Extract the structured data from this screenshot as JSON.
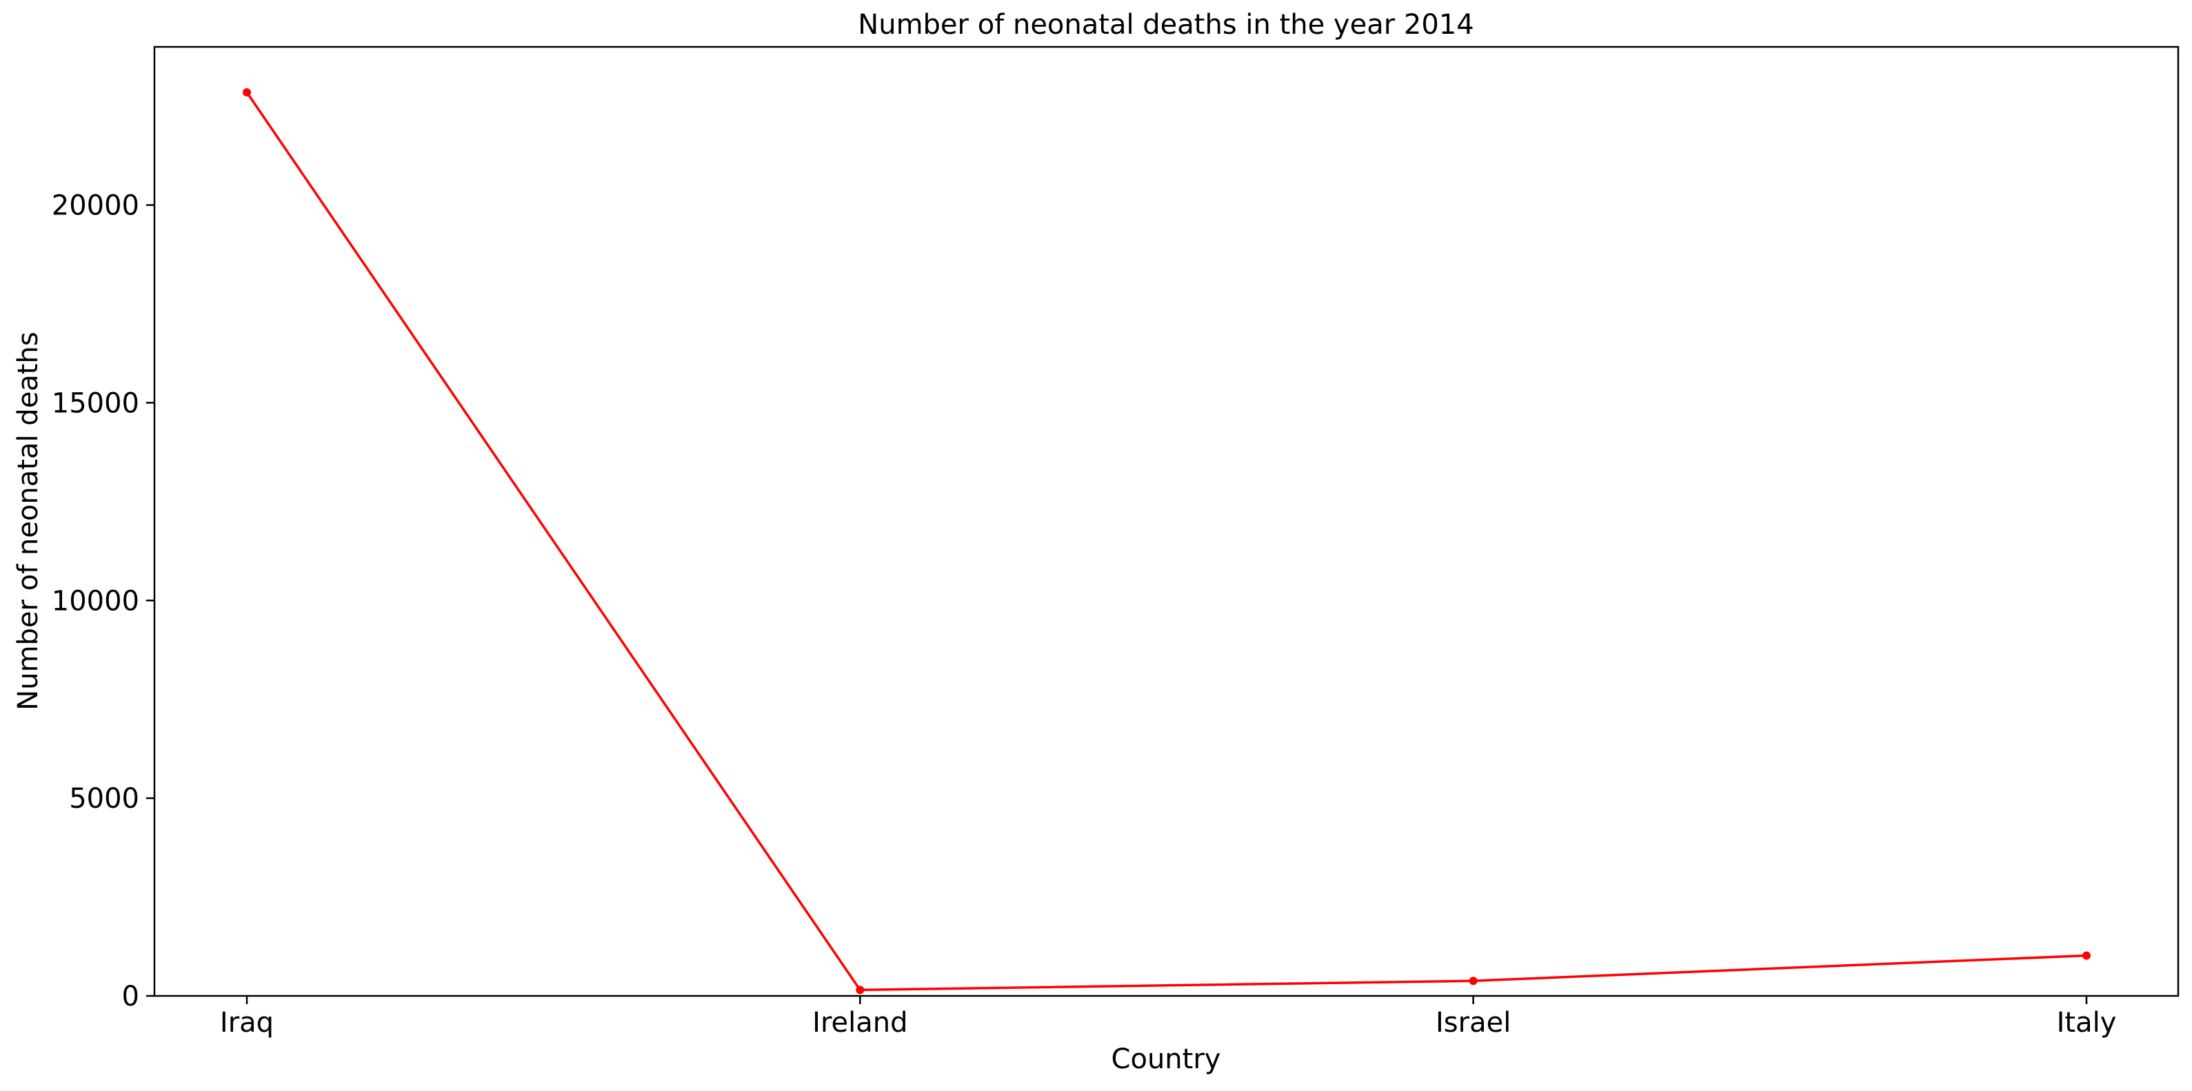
{
  "chart_data": {
    "type": "line",
    "title": "Number of neonatal deaths in the year 2014",
    "xlabel": "Country",
    "ylabel": "Number of neonatal deaths",
    "categories": [
      "Iraq",
      "Ireland",
      "Israel",
      "Italy"
    ],
    "series": [
      {
        "values": [
          22850,
          150,
          380,
          1020
        ],
        "color": "#ff0000",
        "marker": "circle"
      }
    ],
    "ylim": [
      0,
      24000
    ],
    "yticks": [
      0,
      5000,
      10000,
      15000,
      20000
    ],
    "ytick_labels": [
      "0",
      "5000",
      "10000",
      "15000",
      "20000"
    ],
    "grid": false,
    "legend": "none"
  }
}
